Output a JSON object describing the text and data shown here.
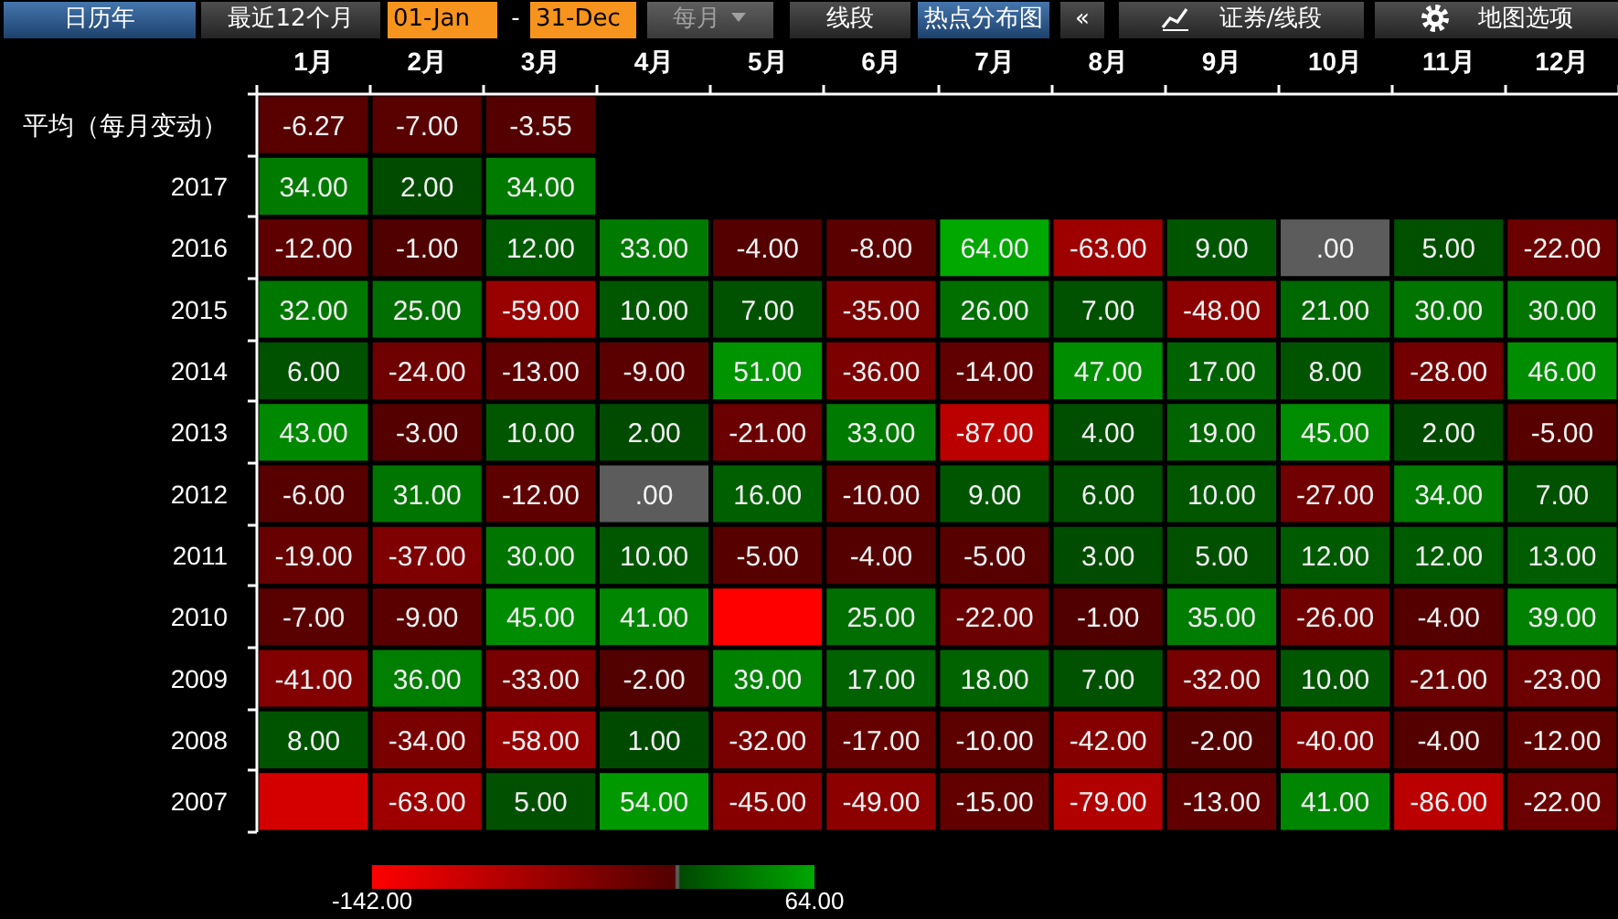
{
  "chart_data": {
    "type": "heatmap",
    "annotations": [
      "日历年",
      "最近12个月",
      "01-Jan",
      "-",
      "31-Dec",
      "每月",
      "线段",
      "热点分布图",
      "«",
      "证券/线段",
      "地图选项"
    ],
    "categories": [
      "1月",
      "2月",
      "3月",
      "4月",
      "5月",
      "6月",
      "7月",
      "8月",
      "9月",
      "10月",
      "11月",
      "12月"
    ],
    "y_categories": [
      "平均（每月变动）",
      "2017",
      "2016",
      "2015",
      "2014",
      "2013",
      "2012",
      "2011",
      "2010",
      "2009",
      "2008",
      "2007"
    ],
    "cells": [
      [
        -6.27,
        -7.0,
        -3.55,
        null,
        null,
        null,
        null,
        null,
        null,
        null,
        null,
        null
      ],
      [
        34,
        2,
        34,
        null,
        null,
        null,
        null,
        null,
        null,
        null,
        null,
        null
      ],
      [
        -12,
        -1,
        12,
        33,
        -4,
        -8,
        64,
        -63,
        9,
        0,
        5,
        -22
      ],
      [
        32,
        25,
        -59,
        10,
        7,
        -35,
        26,
        7,
        -48,
        21,
        30,
        30
      ],
      [
        6,
        -24,
        -13,
        -9,
        51,
        -36,
        -14,
        47,
        17,
        8,
        -28,
        46
      ],
      [
        43,
        -3,
        10,
        2,
        -21,
        33,
        -87,
        4,
        19,
        45,
        2,
        -5
      ],
      [
        -6,
        31,
        -12,
        0,
        16,
        -10,
        9,
        6,
        10,
        -27,
        34,
        7
      ],
      [
        -19,
        -37,
        30,
        10,
        -5,
        -4,
        -5,
        3,
        5,
        12,
        12,
        13
      ],
      [
        -7,
        -9,
        45,
        41,
        -142,
        25,
        -22,
        -1,
        35,
        -26,
        -4,
        39
      ],
      [
        -41,
        36,
        -33,
        -2,
        39,
        17,
        18,
        7,
        -32,
        10,
        -21,
        -23
      ],
      [
        8,
        -34,
        -58,
        1,
        -32,
        -17,
        -10,
        -42,
        -2,
        -40,
        -4,
        -12
      ],
      [
        -107,
        -63,
        5,
        54,
        -45,
        -49,
        -15,
        -79,
        -13,
        41,
        -86,
        -22
      ]
    ],
    "cell_labels": [
      [
        "-6.27",
        "-7.00",
        "-3.55",
        null,
        null,
        null,
        null,
        null,
        null,
        null,
        null,
        null
      ],
      [
        "34.00",
        "2.00",
        "34.00",
        null,
        null,
        null,
        null,
        null,
        null,
        null,
        null,
        null
      ],
      [
        "-12.00",
        "-1.00",
        "12.00",
        "33.00",
        "-4.00",
        "-8.00",
        "64.00",
        "-63.00",
        "9.00",
        ".00",
        "5.00",
        "-22.00"
      ],
      [
        "32.00",
        "25.00",
        "-59.00",
        "10.00",
        "7.00",
        "-35.00",
        "26.00",
        "7.00",
        "-48.00",
        "21.00",
        "30.00",
        "30.00"
      ],
      [
        "6.00",
        "-24.00",
        "-13.00",
        "-9.00",
        "51.00",
        "-36.00",
        "-14.00",
        "47.00",
        "17.00",
        "8.00",
        "-28.00",
        "46.00"
      ],
      [
        "43.00",
        "-3.00",
        "10.00",
        "2.00",
        "-21.00",
        "33.00",
        "-87.00",
        "4.00",
        "19.00",
        "45.00",
        "2.00",
        "-5.00"
      ],
      [
        "-6.00",
        "31.00",
        "-12.00",
        ".00",
        "16.00",
        "-10.00",
        "9.00",
        "6.00",
        "10.00",
        "-27.00",
        "34.00",
        "7.00"
      ],
      [
        "-19.00",
        "-37.00",
        "30.00",
        "10.00",
        "-5.00",
        "-4.00",
        "-5.00",
        "3.00",
        "5.00",
        "12.00",
        "12.00",
        "13.00"
      ],
      [
        "-7.00",
        "-9.00",
        "45.00",
        "41.00",
        null,
        "25.00",
        "-22.00",
        "-1.00",
        "35.00",
        "-26.00",
        "-4.00",
        "39.00"
      ],
      [
        "-41.00",
        "36.00",
        "-33.00",
        "-2.00",
        "39.00",
        "17.00",
        "18.00",
        "7.00",
        "-32.00",
        "10.00",
        "-21.00",
        "-23.00"
      ],
      [
        "8.00",
        "-34.00",
        "-58.00",
        "1.00",
        "-32.00",
        "-17.00",
        "-10.00",
        "-42.00",
        "-2.00",
        "-40.00",
        "-4.00",
        "-12.00"
      ],
      [
        null,
        "-63.00",
        "5.00",
        "54.00",
        "-45.00",
        "-49.00",
        "-15.00",
        "-79.00",
        "-13.00",
        "41.00",
        "-86.00",
        "-22.00"
      ]
    ],
    "clim": [
      -142,
      64
    ],
    "cticks": [
      {
        "value": -142,
        "label": "-142.00"
      },
      {
        "value": 64,
        "label": "64.00"
      }
    ]
  }
}
